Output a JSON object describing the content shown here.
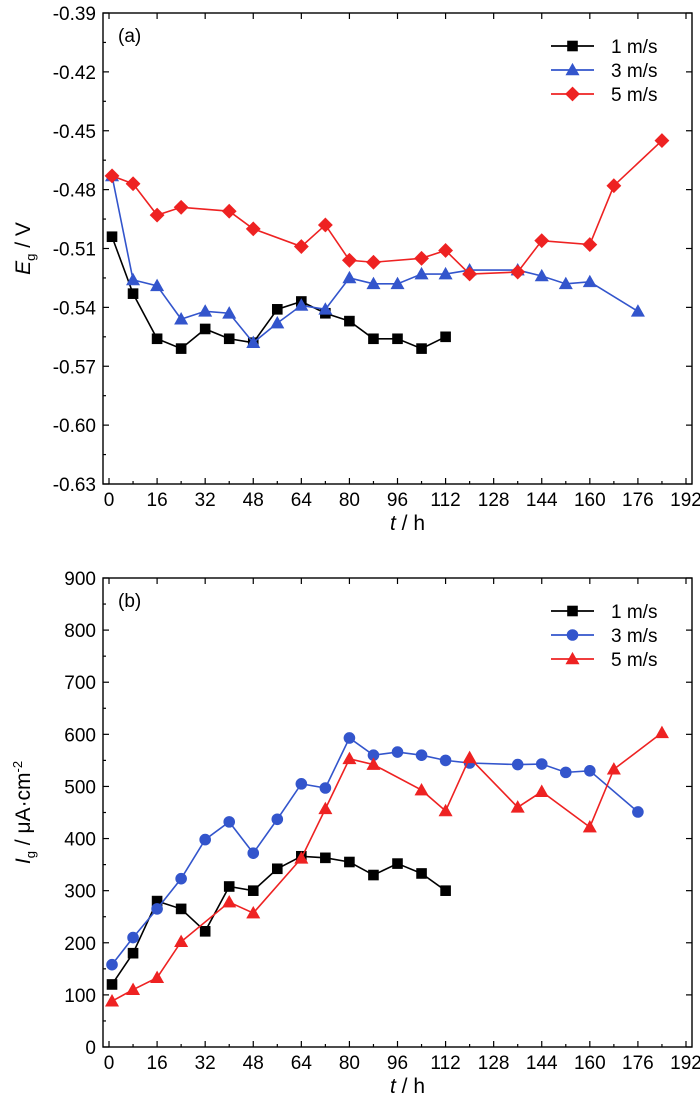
{
  "chart_data": [
    {
      "type": "line",
      "panel_label": "(a)",
      "xlabel": {
        "italic": "t",
        "rest": " / h"
      },
      "ylabel": {
        "main": "E",
        "sub": "g",
        "rest": " / V"
      },
      "xlim": [
        -2,
        194
      ],
      "ylim": [
        -0.63,
        -0.39
      ],
      "xticks": [
        0,
        16,
        32,
        48,
        64,
        80,
        96,
        112,
        128,
        144,
        160,
        176,
        192
      ],
      "yticks": [
        -0.39,
        -0.42,
        -0.45,
        -0.48,
        -0.51,
        -0.54,
        -0.57,
        -0.6,
        -0.63
      ],
      "ytick_labels": [
        "-0.39",
        "-0.42",
        "-0.45",
        "-0.48",
        "-0.51",
        "-0.54",
        "-0.57",
        "-0.60",
        "-0.63"
      ],
      "legend_position": "top-right",
      "series": [
        {
          "name": "1 m/s",
          "color": "#000000",
          "marker": "square",
          "x": [
            1,
            8,
            16,
            24,
            32,
            40,
            48,
            56,
            64,
            72,
            80,
            88,
            96,
            104,
            112
          ],
          "y": [
            -0.504,
            -0.533,
            -0.556,
            -0.561,
            -0.551,
            -0.556,
            -0.558,
            -0.541,
            -0.537,
            -0.543,
            -0.547,
            -0.556,
            -0.556,
            -0.561,
            -0.555
          ]
        },
        {
          "name": "3 m/s",
          "color": "#3355cc",
          "marker": "triangle",
          "x": [
            1,
            8,
            16,
            24,
            32,
            40,
            48,
            56,
            64,
            72,
            80,
            88,
            96,
            104,
            112,
            120,
            136,
            144,
            152,
            160,
            176
          ],
          "y": [
            -0.473,
            -0.526,
            -0.529,
            -0.546,
            -0.542,
            -0.543,
            -0.558,
            -0.548,
            -0.539,
            -0.541,
            -0.525,
            -0.528,
            -0.528,
            -0.523,
            -0.523,
            -0.521,
            -0.521,
            -0.524,
            -0.528,
            -0.527,
            -0.542
          ]
        },
        {
          "name": "5 m/s",
          "color": "#ee2222",
          "marker": "diamond",
          "x": [
            1,
            8,
            16,
            24,
            40,
            48,
            64,
            72,
            80,
            88,
            104,
            112,
            120,
            136,
            144,
            160,
            168,
            184
          ],
          "y": [
            -0.473,
            -0.477,
            -0.493,
            -0.489,
            -0.491,
            -0.5,
            -0.509,
            -0.498,
            -0.516,
            -0.517,
            -0.515,
            -0.511,
            -0.523,
            -0.522,
            -0.506,
            -0.508,
            -0.478,
            -0.455
          ]
        }
      ]
    },
    {
      "type": "line",
      "panel_label": "(b)",
      "xlabel": {
        "italic": "t",
        "rest": " / h"
      },
      "ylabel": {
        "main": "I",
        "sub": "g",
        "rest": " / μA·cm",
        "sup": "-2"
      },
      "xlim": [
        -2,
        194
      ],
      "ylim": [
        0,
        900
      ],
      "xticks": [
        0,
        16,
        32,
        48,
        64,
        80,
        96,
        112,
        128,
        144,
        160,
        176,
        192
      ],
      "yticks": [
        0,
        100,
        200,
        300,
        400,
        500,
        600,
        700,
        800,
        900
      ],
      "ytick_labels": [
        "0",
        "100",
        "200",
        "300",
        "400",
        "500",
        "600",
        "700",
        "800",
        "900"
      ],
      "legend_position": "top-right",
      "series": [
        {
          "name": "1 m/s",
          "color": "#000000",
          "marker": "square",
          "x": [
            1,
            8,
            16,
            24,
            32,
            40,
            48,
            56,
            64,
            72,
            80,
            88,
            96,
            104,
            112
          ],
          "y": [
            120,
            180,
            280,
            265,
            222,
            308,
            300,
            342,
            366,
            363,
            355,
            330,
            352,
            333,
            300
          ]
        },
        {
          "name": "3 m/s",
          "color": "#3355cc",
          "marker": "circle",
          "x": [
            1,
            8,
            16,
            24,
            32,
            40,
            48,
            56,
            64,
            72,
            80,
            88,
            96,
            104,
            112,
            120,
            136,
            144,
            152,
            160,
            176
          ],
          "y": [
            158,
            210,
            265,
            323,
            398,
            432,
            372,
            437,
            505,
            497,
            593,
            560,
            566,
            560,
            550,
            545,
            542,
            543,
            527,
            530,
            451
          ]
        },
        {
          "name": "5 m/s",
          "color": "#ee2222",
          "marker": "triangle",
          "x": [
            1,
            8,
            16,
            24,
            40,
            48,
            64,
            72,
            80,
            88,
            104,
            112,
            120,
            136,
            144,
            160,
            168,
            184
          ],
          "y": [
            88,
            110,
            133,
            202,
            278,
            257,
            362,
            457,
            553,
            542,
            493,
            453,
            555,
            460,
            490,
            422,
            533,
            603
          ]
        }
      ]
    }
  ]
}
